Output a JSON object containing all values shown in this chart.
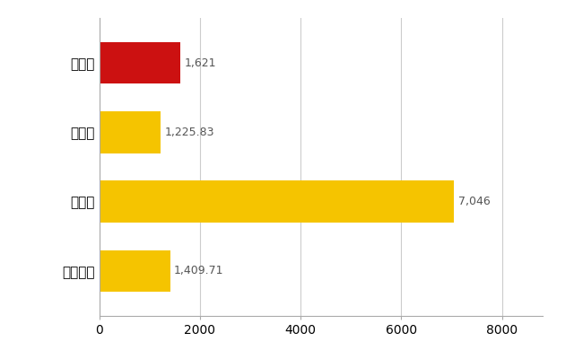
{
  "categories": [
    "宇佐市",
    "県平均",
    "県最大",
    "全国平均"
  ],
  "values": [
    1621,
    1225.83,
    7046,
    1409.71
  ],
  "bar_colors": [
    "#cc1111",
    "#f5c400",
    "#f5c400",
    "#f5c400"
  ],
  "labels": [
    "1,621",
    "1,225.83",
    "7,046",
    "1,409.71"
  ],
  "xlim": [
    0,
    8800
  ],
  "xticks": [
    0,
    2000,
    4000,
    6000,
    8000
  ],
  "background_color": "#ffffff",
  "grid_color": "#cccccc",
  "bar_height": 0.6,
  "label_fontsize": 9,
  "tick_fontsize": 10,
  "ytick_fontsize": 11
}
